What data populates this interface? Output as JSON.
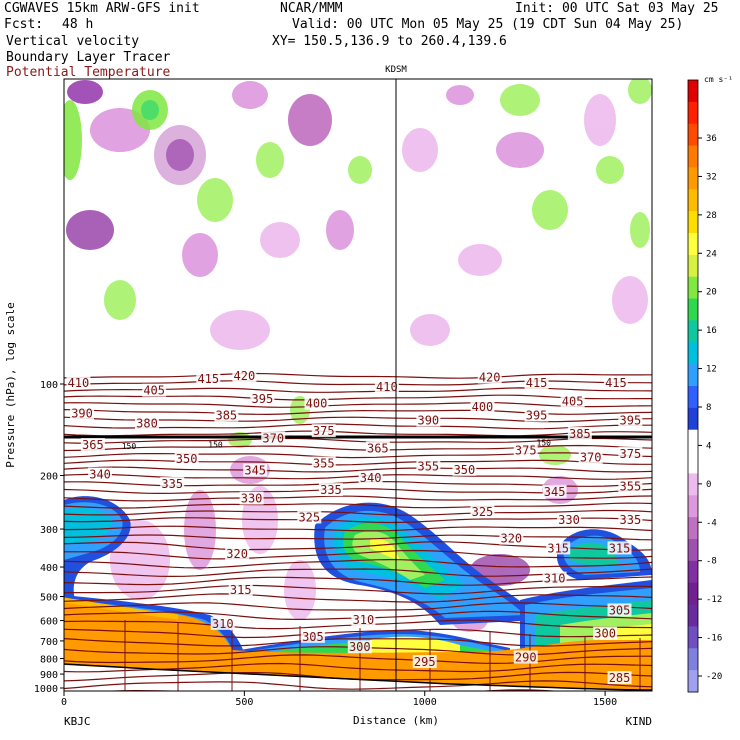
{
  "header": {
    "model": "CGWAVES 15km ARW-GFS init",
    "org": "NCAR/MMM",
    "init": "Init: 00 UTC Sat 03 May 25",
    "fcst_label": "Fcst:",
    "fcst_value": "48 h",
    "valid": "Valid: 00 UTC Mon 05 May 25 (19 CDT Sun 04 May 25)",
    "field1": "Vertical velocity",
    "field2": "Boundary Layer Tracer",
    "field3": "Potential Temperature",
    "xy": "XY= 150.5,136.9 to 260.4,139.6",
    "station_mid": "KDSM"
  },
  "colors": {
    "theta": "#7a1010",
    "title3": "#8b1a1a"
  },
  "chart_data": {
    "type": "heatmap",
    "title": "",
    "xlabel": "Distance (km)",
    "ylabel": "Pressure (hPa), log scale",
    "x_ticks": [
      0,
      500,
      1000,
      1500
    ],
    "xlim": [
      0,
      1630
    ],
    "y_ticks": [
      100,
      200,
      300,
      400,
      500,
      600,
      700,
      800,
      900,
      1000
    ],
    "y_scale": "log",
    "left_station": "KBJC",
    "right_station": "KIND",
    "mid_station_km": 935,
    "colorbar": {
      "unit": "cm s⁻¹",
      "labels": [
        "36",
        "32",
        "28",
        "24",
        "20",
        "16",
        "12",
        "8",
        "4",
        "0",
        "-4",
        "-8",
        "-12",
        "-16",
        "-20"
      ],
      "colors": [
        "#e00000",
        "#ff2000",
        "#ff4a00",
        "#ff7a00",
        "#ff9a00",
        "#ffbb00",
        "#ffdd00",
        "#ffff40",
        "#d8f040",
        "#80e840",
        "#30d850",
        "#10c8a0",
        "#00c0e0",
        "#30a0ff",
        "#3060ff",
        "#2040d8",
        "#ffffff",
        "#ffffff",
        "#eebbee",
        "#dd99dd",
        "#c070c0",
        "#a050b0",
        "#8030a0",
        "#702090",
        "#6a2aa0",
        "#7050c0",
        "#8080e0",
        "#a0a0f0"
      ]
    },
    "theta_labels": [
      {
        "text": "410",
        "km": 40,
        "p": 100
      },
      {
        "text": "415",
        "km": 400,
        "p": 97
      },
      {
        "text": "420",
        "km": 500,
        "p": 95
      },
      {
        "text": "410",
        "km": 895,
        "p": 103
      },
      {
        "text": "420",
        "km": 1180,
        "p": 96
      },
      {
        "text": "415",
        "km": 1310,
        "p": 100
      },
      {
        "text": "415",
        "km": 1530,
        "p": 100
      },
      {
        "text": "405",
        "km": 250,
        "p": 106
      },
      {
        "text": "395",
        "km": 550,
        "p": 113
      },
      {
        "text": "400",
        "km": 700,
        "p": 117
      },
      {
        "text": "400",
        "km": 1160,
        "p": 120
      },
      {
        "text": "405",
        "km": 1410,
        "p": 115
      },
      {
        "text": "390",
        "km": 50,
        "p": 126
      },
      {
        "text": "385",
        "km": 450,
        "p": 128
      },
      {
        "text": "380",
        "km": 230,
        "p": 136
      },
      {
        "text": "390",
        "km": 1010,
        "p": 133
      },
      {
        "text": "395",
        "km": 1310,
        "p": 128
      },
      {
        "text": "395",
        "km": 1570,
        "p": 133
      },
      {
        "text": "375",
        "km": 720,
        "p": 144
      },
      {
        "text": "385",
        "km": 1430,
        "p": 147
      },
      {
        "text": "365",
        "km": 80,
        "p": 160
      },
      {
        "text": "370",
        "km": 580,
        "p": 152
      },
      {
        "text": "365",
        "km": 870,
        "p": 164
      },
      {
        "text": "375",
        "km": 1280,
        "p": 167
      },
      {
        "text": "370",
        "km": 1460,
        "p": 176
      },
      {
        "text": "375",
        "km": 1570,
        "p": 171
      },
      {
        "text": "350",
        "km": 340,
        "p": 178
      },
      {
        "text": "355",
        "km": 720,
        "p": 184
      },
      {
        "text": "355",
        "km": 1010,
        "p": 188
      },
      {
        "text": "350",
        "km": 1110,
        "p": 193
      },
      {
        "text": "340",
        "km": 100,
        "p": 200
      },
      {
        "text": "345",
        "km": 530,
        "p": 194
      },
      {
        "text": "340",
        "km": 850,
        "p": 205
      },
      {
        "text": "335",
        "km": 300,
        "p": 215
      },
      {
        "text": "335",
        "km": 740,
        "p": 225
      },
      {
        "text": "345",
        "km": 1360,
        "p": 228
      },
      {
        "text": "355",
        "km": 1570,
        "p": 219
      },
      {
        "text": "330",
        "km": 520,
        "p": 240
      },
      {
        "text": "325",
        "km": 680,
        "p": 277
      },
      {
        "text": "325",
        "km": 1160,
        "p": 266
      },
      {
        "text": "330",
        "km": 1400,
        "p": 282
      },
      {
        "text": "335",
        "km": 1570,
        "p": 282
      },
      {
        "text": "320",
        "km": 1240,
        "p": 325
      },
      {
        "text": "315",
        "km": 1370,
        "p": 350
      },
      {
        "text": "315",
        "km": 1540,
        "p": 350
      },
      {
        "text": "320",
        "km": 480,
        "p": 365
      },
      {
        "text": "310",
        "km": 1360,
        "p": 440
      },
      {
        "text": "315",
        "km": 490,
        "p": 480
      },
      {
        "text": "305",
        "km": 1540,
        "p": 560
      },
      {
        "text": "310",
        "km": 440,
        "p": 620
      },
      {
        "text": "310",
        "km": 830,
        "p": 602
      },
      {
        "text": "300",
        "km": 1500,
        "p": 668
      },
      {
        "text": "305",
        "km": 690,
        "p": 684
      },
      {
        "text": "300",
        "km": 820,
        "p": 740
      },
      {
        "text": "295",
        "km": 1000,
        "p": 828
      },
      {
        "text": "290",
        "km": 1280,
        "p": 800
      },
      {
        "text": "285",
        "km": 1540,
        "p": 935
      }
    ],
    "inline_labels": [
      {
        "text": "150",
        "km": 180,
        "p": 160
      },
      {
        "text": "150",
        "km": 420,
        "p": 158
      },
      {
        "text": "150",
        "km": 1330,
        "p": 156
      }
    ]
  }
}
